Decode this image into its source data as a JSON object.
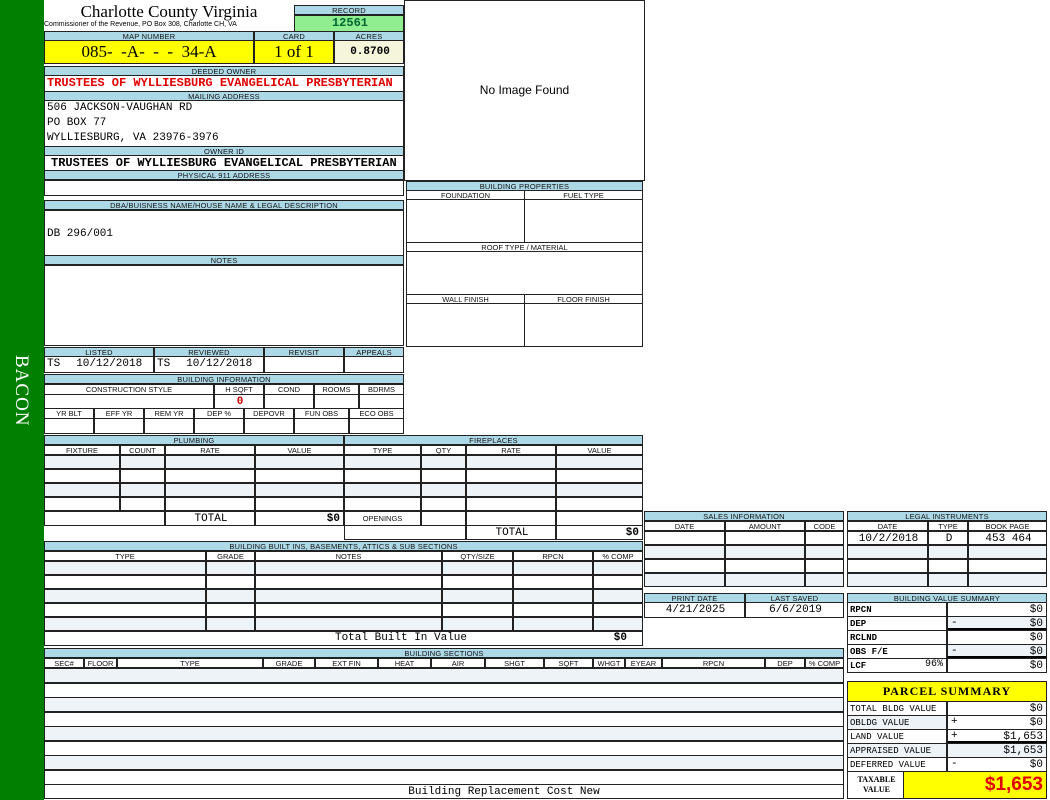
{
  "sidebar": {
    "label": "BACON"
  },
  "header": {
    "county": "Charlotte County Virginia",
    "subtitle": "Commissioner of the Revenue, PO Box 308, Charlotte CH, VA",
    "record_label": "RECORD",
    "record": "12561"
  },
  "parcel": {
    "map_label": "MAP NUMBER",
    "map": "085-  -A-  -  -  34-A",
    "card_label": "CARD",
    "card": "1 of 1",
    "acres_label": "ACRES",
    "acres": "0.8700"
  },
  "owner": {
    "deeded_label": "DEEDED OWNER",
    "deeded": "TRUSTEES OF WYLLIESBURG EVANGELICAL PRESBYTERIAN",
    "mailing_label": "MAILING ADDRESS",
    "mailing": [
      "506 JACKSON-VAUGHAN RD",
      "PO BOX 77",
      "WYLLIESBURG, VA 23976-3976"
    ],
    "owner_id_label": "OWNER ID",
    "owner_id": "TRUSTEES OF WYLLIESBURG EVANGELICAL PRESBYTERIAN",
    "physical_label": "PHYSICAL 911 ADDRESS"
  },
  "dba": {
    "label": "DBA/BUISNESS NAME/HOUSE NAME & LEGAL DESCRIPTION",
    "value": "DB 296/001"
  },
  "notes": {
    "label": "NOTES"
  },
  "image": {
    "text": "No Image Found"
  },
  "building_properties": {
    "title": "BUILDING PROPERTIES",
    "foundation": "FOUNDATION",
    "fuel_type": "FUEL TYPE",
    "roof": "ROOF TYPE / MATERIAL",
    "wall": "WALL FINISH",
    "floor": "FLOOR FINISH"
  },
  "review": {
    "listed_label": "LISTED",
    "listed_by": "TS",
    "listed_date": "10/12/2018",
    "reviewed_label": "REVIEWED",
    "reviewed_by": "TS",
    "reviewed_date": "10/12/2018",
    "revisit_label": "REVISIT",
    "appeals_label": "APPEALS"
  },
  "building_info": {
    "title": "BUILDING INFORMATION",
    "headers1": [
      "CONSTRUCTION STYLE",
      "H SQFT",
      "COND",
      "ROOMS",
      "BDRMS"
    ],
    "hsqft": "0",
    "headers2": [
      "YR BLT",
      "EFF YR",
      "REM YR",
      "DEP %",
      "DEPOVR",
      "FUN OBS",
      "ECO OBS"
    ]
  },
  "plumbing": {
    "title": "PLUMBING",
    "columns": [
      "FIXTURE",
      "COUNT",
      "RATE",
      "VALUE"
    ],
    "total_label": "TOTAL",
    "total": "$0"
  },
  "fireplaces": {
    "title": "FIREPLACES",
    "columns": [
      "TYPE",
      "QTY",
      "RATE",
      "VALUE"
    ],
    "openings_label": "OPENINGS",
    "total_label": "TOTAL",
    "total": "$0"
  },
  "builtins": {
    "title": "BUILDING BUILT INS, BASEMENTS, ATTICS & SUB SECTIONS",
    "columns": [
      "TYPE",
      "GRADE",
      "NOTES",
      "QTY/SIZE",
      "RPCN",
      "% COMP"
    ],
    "total_label": "Total Built In Value",
    "total": "$0"
  },
  "sections": {
    "title": "BUILDING SECTIONS",
    "columns": [
      "SEC#",
      "FLOOR",
      "TYPE",
      "GRADE",
      "EXT FIN",
      "HEAT",
      "AIR",
      "SHGT",
      "SQFT",
      "WHGT",
      "EYEAR",
      "RPCN",
      "DEP",
      "% COMP"
    ],
    "footer": "Building Replacement Cost New"
  },
  "sales": {
    "title": "SALES INFORMATION",
    "columns": [
      "DATE",
      "AMOUNT",
      "CODE"
    ]
  },
  "legal": {
    "title": "LEGAL INSTRUMENTS",
    "columns": [
      "DATE",
      "TYPE",
      "BOOK PAGE"
    ],
    "rows": [
      [
        "10/2/2018",
        "D",
        "453 464"
      ]
    ]
  },
  "dates": {
    "print_label": "PRINT DATE",
    "print": "4/21/2025",
    "saved_label": "LAST SAVED",
    "saved": "6/6/2019"
  },
  "value_summary": {
    "title": "BUILDING VALUE SUMMARY",
    "rows": [
      {
        "label": "RPCN",
        "pct": "",
        "sign": "",
        "value": "$0"
      },
      {
        "label": "DEP",
        "pct": "",
        "sign": "-",
        "value": "$0"
      },
      {
        "label": "RCLND",
        "pct": "",
        "sign": "",
        "value": "$0"
      },
      {
        "label": "OBS F/E",
        "pct": "",
        "sign": "-",
        "value": "$0"
      },
      {
        "label": "LCF",
        "pct": "96%",
        "sign": "",
        "value": "$0"
      }
    ]
  },
  "parcel_summary": {
    "title": "PARCEL SUMMARY",
    "rows": [
      {
        "label": "TOTAL BLDG VALUE",
        "sign": "",
        "value": "$0"
      },
      {
        "label": "OBLDG VALUE",
        "sign": "+",
        "value": "$0"
      },
      {
        "label": "LAND VALUE",
        "sign": "+",
        "value": "$1,653"
      },
      {
        "label": "APPRAISED VALUE",
        "sign": "",
        "value": "$1,653"
      },
      {
        "label": "DEFERRED VALUE",
        "sign": "-",
        "value": "$0"
      }
    ],
    "taxable_label": "TAXABLE VALUE",
    "taxable": "$1,653"
  },
  "colors": {
    "sidebar": "#007f00",
    "header": "#add8e6",
    "highlight": "#ffff00",
    "record": "#90ee90",
    "alert": "#e00000"
  }
}
